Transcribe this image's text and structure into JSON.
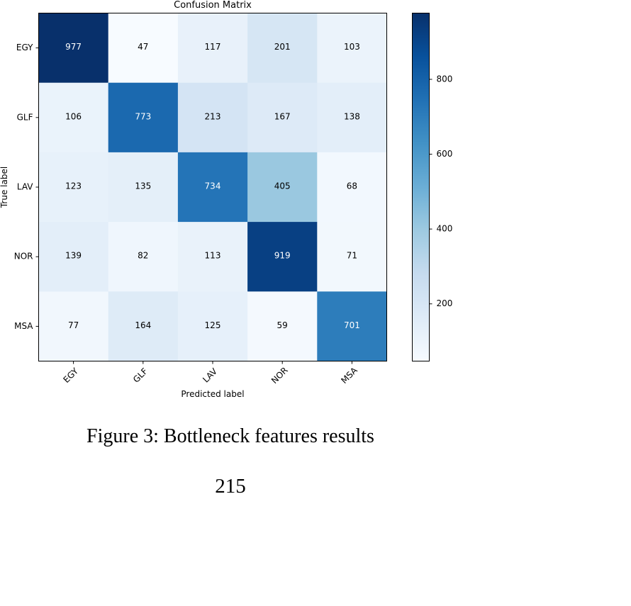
{
  "chart_data": {
    "type": "heatmap",
    "title": "Confusion Matrix",
    "xlabel": "Predicted label",
    "ylabel": "True label",
    "x_categories": [
      "EGY",
      "GLF",
      "LAV",
      "NOR",
      "MSA"
    ],
    "y_categories": [
      "EGY",
      "GLF",
      "LAV",
      "NOR",
      "MSA"
    ],
    "matrix": [
      [
        977,
        47,
        117,
        201,
        103
      ],
      [
        106,
        773,
        213,
        167,
        138
      ],
      [
        123,
        135,
        734,
        405,
        68
      ],
      [
        139,
        82,
        113,
        919,
        71
      ],
      [
        77,
        164,
        125,
        59,
        701
      ]
    ],
    "colormap": "Blues",
    "colorbar": {
      "range": [
        47,
        977
      ],
      "ticks": [
        200,
        400,
        600,
        800
      ]
    }
  },
  "caption": "Figure 3: Bottleneck features results",
  "page_number": "215"
}
